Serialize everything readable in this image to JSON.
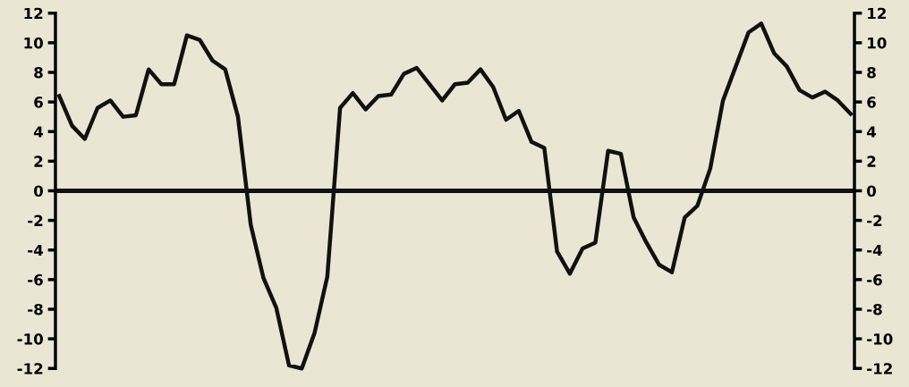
{
  "chart_data": {
    "type": "line",
    "categories": [
      null,
      null,
      null,
      null,
      null,
      null,
      null,
      null,
      null,
      null,
      null,
      null,
      null,
      null,
      null,
      null,
      null,
      null,
      null,
      null,
      null,
      null,
      null,
      null,
      null,
      null,
      null,
      null,
      null,
      null,
      null,
      null,
      null,
      null,
      null,
      null,
      null,
      null,
      null,
      null,
      null,
      null,
      null,
      null,
      null,
      null,
      null,
      null,
      null,
      null,
      null,
      null,
      null,
      null,
      null,
      null,
      null,
      null,
      null,
      null,
      null,
      null,
      null
    ],
    "series": [
      {
        "color": "#111111",
        "values": [
          6.4,
          4.4,
          3.5,
          5.6,
          6.1,
          5.0,
          5.1,
          8.2,
          7.2,
          7.2,
          10.5,
          10.2,
          8.8,
          8.2,
          5.0,
          -2.3,
          -5.9,
          -7.9,
          -11.8,
          -12.0,
          -9.6,
          -5.8,
          5.6,
          6.6,
          5.5,
          6.4,
          6.5,
          7.9,
          8.3,
          7.2,
          6.1,
          7.2,
          7.3,
          8.2,
          7.0,
          4.8,
          5.4,
          3.3,
          2.9,
          -4.1,
          -5.6,
          -3.9,
          -3.5,
          2.7,
          2.5,
          -1.8,
          -3.5,
          -5.0,
          -5.5,
          -1.8,
          -1.0,
          1.5,
          6.1,
          8.4,
          10.7,
          11.3,
          9.3,
          8.4,
          6.8,
          6.3,
          6.7,
          6.1,
          5.2
        ]
      }
    ],
    "ylim": [
      -12,
      12
    ],
    "yticks": [
      -12,
      -10,
      -8,
      -6,
      -4,
      -2,
      0,
      2,
      4,
      6,
      8,
      10,
      12
    ],
    "y2lim": [
      -12,
      12
    ],
    "y2ticks": [
      -12,
      -10,
      -8,
      -6,
      -4,
      -2,
      0,
      2,
      4,
      6,
      8,
      10,
      12
    ],
    "ref_lines": [
      {
        "axis": "y",
        "value": 0,
        "color": "#111111"
      }
    ],
    "tick_labels": "y",
    "grid": false,
    "marker": "none",
    "line_style": "solid"
  }
}
